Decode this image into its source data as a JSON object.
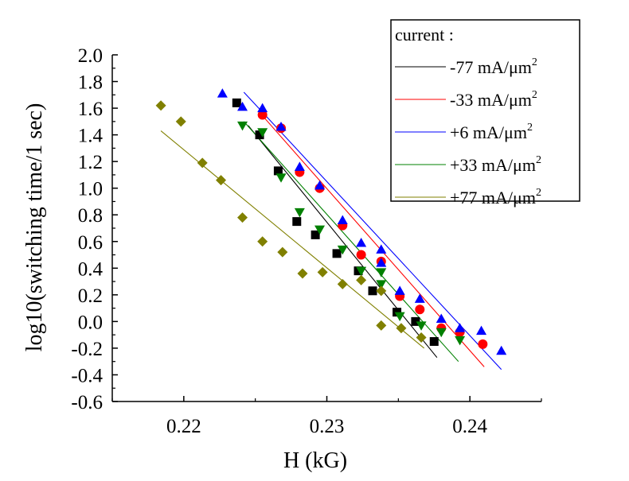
{
  "chart_data": {
    "type": "scatter",
    "xlabel": "H (kG)",
    "ylabel": "log10(switching time/1 sec)",
    "xlim": [
      0.215,
      0.245
    ],
    "ylim": [
      -0.6,
      2.0
    ],
    "x_ticks": [
      0.22,
      0.23,
      0.24
    ],
    "x_tick_labels": [
      "0.22",
      "0.23",
      "0.24"
    ],
    "y_ticks": [
      2.0,
      1.8,
      1.6,
      1.4,
      1.2,
      1.0,
      0.8,
      0.6,
      0.4,
      0.2,
      0.0,
      -0.2,
      -0.4,
      -0.6
    ],
    "y_tick_labels": [
      "2.0",
      "1.8",
      "1.6",
      "1.4",
      "1.2",
      "1.0",
      "0.8",
      "0.6",
      "0.4",
      "0.2",
      "0.0",
      "-0.2",
      "-0.4",
      "-0.6"
    ],
    "legend_title": "current :",
    "legend_position": "top-right",
    "grid": false,
    "series": [
      {
        "name": "-77 mA/μm",
        "unit_exponent": "2",
        "color": "#000000",
        "marker": "square",
        "points": [
          {
            "x": 0.2237,
            "y": 1.64
          },
          {
            "x": 0.2253,
            "y": 1.4
          },
          {
            "x": 0.2266,
            "y": 1.13
          },
          {
            "x": 0.2279,
            "y": 0.75
          },
          {
            "x": 0.2292,
            "y": 0.65
          },
          {
            "x": 0.2307,
            "y": 0.51
          },
          {
            "x": 0.2322,
            "y": 0.38
          },
          {
            "x": 0.2332,
            "y": 0.23
          },
          {
            "x": 0.2349,
            "y": 0.07
          },
          {
            "x": 0.2362,
            "y": 0.0
          },
          {
            "x": 0.2375,
            "y": -0.15
          }
        ],
        "fit": {
          "x1": 0.2245,
          "y1": 1.47,
          "x2": 0.2377,
          "y2": -0.27
        }
      },
      {
        "name": "-33 mA/μm",
        "unit_exponent": "2",
        "color": "#ff0000",
        "marker": "circle",
        "points": [
          {
            "x": 0.2255,
            "y": 1.55
          },
          {
            "x": 0.2268,
            "y": 1.45
          },
          {
            "x": 0.2281,
            "y": 1.12
          },
          {
            "x": 0.2295,
            "y": 1.0
          },
          {
            "x": 0.2311,
            "y": 0.72
          },
          {
            "x": 0.2324,
            "y": 0.5
          },
          {
            "x": 0.2338,
            "y": 0.45
          },
          {
            "x": 0.2351,
            "y": 0.19
          },
          {
            "x": 0.2365,
            "y": 0.09
          },
          {
            "x": 0.238,
            "y": -0.05
          },
          {
            "x": 0.2393,
            "y": -0.08
          },
          {
            "x": 0.2409,
            "y": -0.17
          }
        ],
        "fit": {
          "x1": 0.2252,
          "y1": 1.58,
          "x2": 0.241,
          "y2": -0.34
        }
      },
      {
        "name": "+6  mA/μm",
        "unit_exponent": "2",
        "color": "#0000ff",
        "marker": "triangle-up",
        "points": [
          {
            "x": 0.2227,
            "y": 1.71
          },
          {
            "x": 0.2241,
            "y": 1.61
          },
          {
            "x": 0.2255,
            "y": 1.6
          },
          {
            "x": 0.2268,
            "y": 1.46
          },
          {
            "x": 0.2281,
            "y": 1.16
          },
          {
            "x": 0.2295,
            "y": 1.02
          },
          {
            "x": 0.2311,
            "y": 0.76
          },
          {
            "x": 0.2324,
            "y": 0.59
          },
          {
            "x": 0.2338,
            "y": 0.54
          },
          {
            "x": 0.2338,
            "y": 0.44
          },
          {
            "x": 0.2351,
            "y": 0.23
          },
          {
            "x": 0.2365,
            "y": 0.17
          },
          {
            "x": 0.238,
            "y": 0.02
          },
          {
            "x": 0.2393,
            "y": -0.05
          },
          {
            "x": 0.2408,
            "y": -0.07
          },
          {
            "x": 0.2422,
            "y": -0.22
          }
        ],
        "fit": {
          "x1": 0.2242,
          "y1": 1.72,
          "x2": 0.2422,
          "y2": -0.36
        }
      },
      {
        "name": "+33  mA/μm",
        "unit_exponent": "2",
        "color": "#008000",
        "marker": "triangle-down",
        "points": [
          {
            "x": 0.2241,
            "y": 1.47
          },
          {
            "x": 0.2255,
            "y": 1.42
          },
          {
            "x": 0.2268,
            "y": 1.08
          },
          {
            "x": 0.2281,
            "y": 0.82
          },
          {
            "x": 0.2295,
            "y": 0.69
          },
          {
            "x": 0.2311,
            "y": 0.54
          },
          {
            "x": 0.2324,
            "y": 0.38
          },
          {
            "x": 0.2338,
            "y": 0.37
          },
          {
            "x": 0.2338,
            "y": 0.28
          },
          {
            "x": 0.2351,
            "y": 0.04
          },
          {
            "x": 0.2366,
            "y": -0.03
          },
          {
            "x": 0.238,
            "y": -0.08
          },
          {
            "x": 0.2393,
            "y": -0.14
          }
        ],
        "fit": {
          "x1": 0.2242,
          "y1": 1.5,
          "x2": 0.2392,
          "y2": -0.3
        }
      },
      {
        "name": "+77 mA/μm",
        "unit_exponent": "2",
        "color": "#808000",
        "marker": "diamond",
        "points": [
          {
            "x": 0.2184,
            "y": 1.62
          },
          {
            "x": 0.2198,
            "y": 1.5
          },
          {
            "x": 0.2213,
            "y": 1.19
          },
          {
            "x": 0.2226,
            "y": 1.06
          },
          {
            "x": 0.2241,
            "y": 0.78
          },
          {
            "x": 0.2255,
            "y": 0.6
          },
          {
            "x": 0.2269,
            "y": 0.52
          },
          {
            "x": 0.2283,
            "y": 0.36
          },
          {
            "x": 0.2297,
            "y": 0.37
          },
          {
            "x": 0.2311,
            "y": 0.28
          },
          {
            "x": 0.2324,
            "y": 0.31
          },
          {
            "x": 0.2338,
            "y": 0.23
          },
          {
            "x": 0.2338,
            "y": -0.03
          },
          {
            "x": 0.2352,
            "y": -0.05
          },
          {
            "x": 0.2366,
            "y": -0.12
          }
        ],
        "fit": {
          "x1": 0.2184,
          "y1": 1.43,
          "x2": 0.2368,
          "y2": -0.2
        }
      }
    ]
  }
}
